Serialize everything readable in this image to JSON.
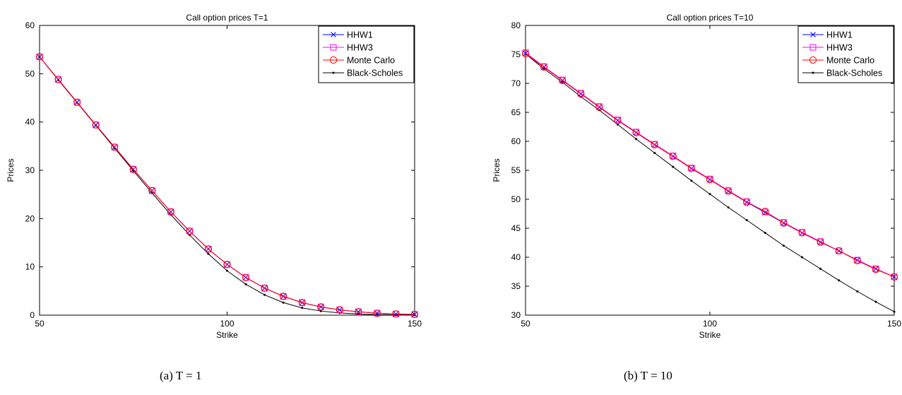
{
  "chart_data": [
    {
      "type": "line",
      "title": "Call option prices T=1",
      "xlabel": "Strike",
      "ylabel": "Prices",
      "xlim": [
        50,
        150
      ],
      "ylim": [
        0,
        60
      ],
      "xticks": [
        50,
        100,
        150
      ],
      "yticks": [
        0,
        10,
        20,
        30,
        40,
        50,
        60
      ],
      "grid": false,
      "legend_position": "top-right",
      "x": [
        50,
        55,
        60,
        65,
        70,
        75,
        80,
        85,
        90,
        95,
        100,
        105,
        110,
        115,
        120,
        125,
        130,
        135,
        140,
        145,
        150
      ],
      "series": [
        {
          "name": "HHW1",
          "color": "#0000ff",
          "marker": "x",
          "values": [
            53.5,
            48.8,
            44.1,
            39.4,
            34.8,
            30.2,
            25.8,
            21.4,
            17.4,
            13.7,
            10.5,
            7.8,
            5.6,
            3.9,
            2.6,
            1.7,
            1.1,
            0.7,
            0.4,
            0.25,
            0.15
          ]
        },
        {
          "name": "HHW3",
          "color": "#ff00ff",
          "marker": "square",
          "values": [
            53.5,
            48.8,
            44.1,
            39.4,
            34.8,
            30.2,
            25.8,
            21.4,
            17.4,
            13.7,
            10.5,
            7.8,
            5.6,
            3.9,
            2.6,
            1.7,
            1.1,
            0.7,
            0.4,
            0.25,
            0.15
          ]
        },
        {
          "name": "Monte Carlo",
          "color": "#ff0000",
          "marker": "circle",
          "values": [
            53.5,
            48.8,
            44.1,
            39.4,
            34.8,
            30.2,
            25.8,
            21.4,
            17.4,
            13.7,
            10.5,
            7.8,
            5.6,
            3.9,
            2.6,
            1.7,
            1.1,
            0.7,
            0.4,
            0.25,
            0.15
          ]
        },
        {
          "name": "Black-Scholes",
          "color": "#000000",
          "marker": "dot",
          "values": [
            53.5,
            48.7,
            44.0,
            39.3,
            34.6,
            29.9,
            25.3,
            20.8,
            16.6,
            12.7,
            9.2,
            6.4,
            4.2,
            2.6,
            1.5,
            0.85,
            0.45,
            0.23,
            0.11,
            0.05,
            0.02
          ]
        }
      ],
      "caption": "(a)  T = 1"
    },
    {
      "type": "line",
      "title": "Call option prices T=10",
      "xlabel": "Strike",
      "ylabel": "Prices",
      "xlim": [
        50,
        150
      ],
      "ylim": [
        30,
        80
      ],
      "xticks": [
        50,
        100,
        150
      ],
      "yticks": [
        30,
        35,
        40,
        45,
        50,
        55,
        60,
        65,
        70,
        75,
        80
      ],
      "grid": false,
      "legend_position": "top-right",
      "x": [
        50,
        55,
        60,
        65,
        70,
        75,
        80,
        85,
        90,
        95,
        100,
        105,
        110,
        115,
        120,
        125,
        130,
        135,
        140,
        145,
        150
      ],
      "series": [
        {
          "name": "HHW1",
          "color": "#0000ff",
          "marker": "x",
          "values": [
            75.2,
            72.8,
            70.5,
            68.2,
            65.9,
            63.6,
            61.5,
            59.4,
            57.4,
            55.3,
            53.4,
            51.4,
            49.5,
            47.7,
            45.9,
            44.2,
            42.6,
            41.1,
            39.5,
            38.0,
            36.6
          ]
        },
        {
          "name": "HHW3",
          "color": "#ff00ff",
          "marker": "square",
          "values": [
            75.3,
            72.9,
            70.6,
            68.3,
            66.0,
            63.7,
            61.6,
            59.5,
            57.5,
            55.4,
            53.5,
            51.5,
            49.6,
            47.8,
            46.0,
            44.3,
            42.7,
            41.1,
            39.5,
            38.0,
            36.6
          ]
        },
        {
          "name": "Monte Carlo",
          "color": "#ff0000",
          "marker": "circle",
          "values": [
            75.1,
            72.8,
            70.5,
            68.2,
            65.9,
            63.6,
            61.5,
            59.4,
            57.4,
            55.3,
            53.4,
            51.4,
            49.5,
            47.9,
            45.9,
            44.2,
            42.6,
            41.1,
            39.4,
            37.9,
            36.6
          ]
        },
        {
          "name": "Black-Scholes",
          "color": "#000000",
          "marker": "dot",
          "values": [
            75.1,
            72.5,
            70.2,
            67.7,
            65.4,
            62.9,
            60.4,
            58.0,
            55.6,
            53.2,
            50.9,
            48.6,
            46.4,
            44.2,
            42.0,
            40.0,
            38.0,
            36.0,
            34.1,
            32.3,
            30.6
          ]
        }
      ],
      "caption": "(b)  T = 10"
    }
  ]
}
